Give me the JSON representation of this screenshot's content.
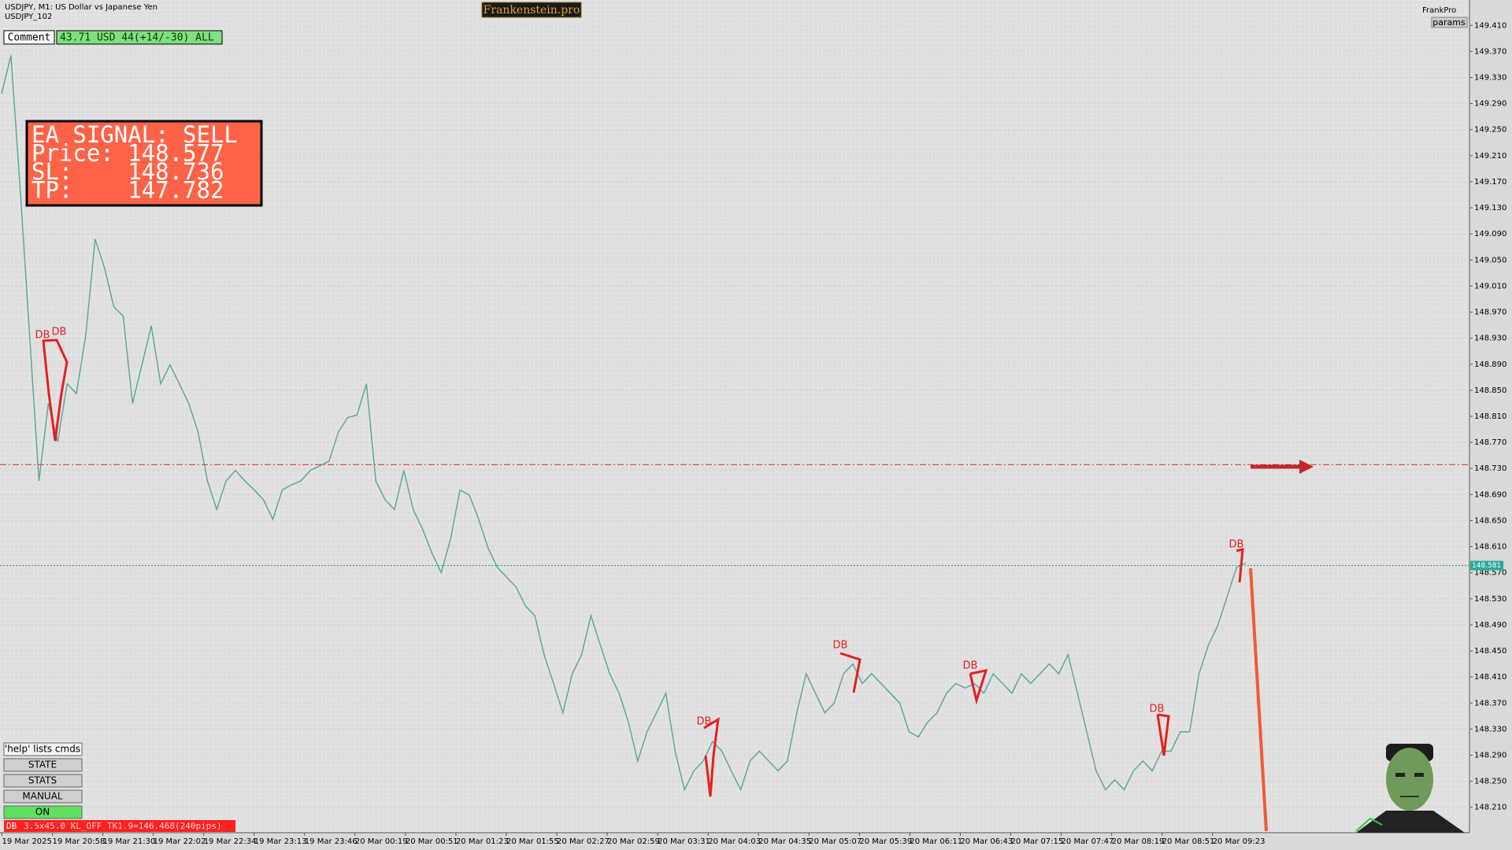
{
  "header": {
    "symbol": "USDJPY, M1:  US Dollar vs Japanese Yen",
    "account": "USDJPY_102",
    "brand": "Frankenstein.pro",
    "user": "FrankPro",
    "params": "params"
  },
  "comment": {
    "button": "Comment",
    "text": "43.71 USD 44(+14/-30) ALL"
  },
  "signal": {
    "lines": [
      "EA SIGNAL: SELL",
      "Price: 148.577",
      "SL:    148.736",
      "TP:    147.782"
    ]
  },
  "buttons": [
    "'help' lists cmds",
    "STATE",
    "STATS",
    "MANUAL",
    "ON"
  ],
  "status": {
    "tag": "DB",
    "text": "3.5x45.0 KL_OFF TK1.9=146.468(240pips)"
  },
  "chart_data": {
    "type": "line",
    "color": "#5fa89b",
    "grid": true,
    "ylim": [
      148.171,
      149.449
    ],
    "yticks": [
      {
        "value": 149.41,
        "label": "149.410"
      },
      {
        "value": 149.37,
        "label": "149.370"
      },
      {
        "value": 149.33,
        "label": "149.330"
      },
      {
        "value": 149.29,
        "label": "149.290"
      },
      {
        "value": 149.25,
        "label": "149.250"
      },
      {
        "value": 149.21,
        "label": "149.210"
      },
      {
        "value": 149.17,
        "label": "149.170"
      },
      {
        "value": 149.13,
        "label": "149.130"
      },
      {
        "value": 149.09,
        "label": "149.090"
      },
      {
        "value": 149.05,
        "label": "149.050"
      },
      {
        "value": 149.01,
        "label": "149.010"
      },
      {
        "value": 148.97,
        "label": "148.970"
      },
      {
        "value": 148.93,
        "label": "148.930"
      },
      {
        "value": 148.89,
        "label": "148.890"
      },
      {
        "value": 148.85,
        "label": "148.850"
      },
      {
        "value": 148.81,
        "label": "148.810"
      },
      {
        "value": 148.77,
        "label": "148.770"
      },
      {
        "value": 148.73,
        "label": "148.730"
      },
      {
        "value": 148.69,
        "label": "148.690"
      },
      {
        "value": 148.65,
        "label": "148.650"
      },
      {
        "value": 148.61,
        "label": "148.610"
      },
      {
        "value": 148.57,
        "label": "148.570"
      },
      {
        "value": 148.53,
        "label": "148.530"
      },
      {
        "value": 148.49,
        "label": "148.490"
      },
      {
        "value": 148.45,
        "label": "148.450"
      },
      {
        "value": 148.41,
        "label": "148.410"
      },
      {
        "value": 148.37,
        "label": "148.370"
      },
      {
        "value": 148.33,
        "label": "148.330"
      },
      {
        "value": 148.29,
        "label": "148.290"
      },
      {
        "value": 148.25,
        "label": "148.250"
      },
      {
        "value": 148.21,
        "label": "148.210"
      }
    ],
    "x_labels": [
      "19 Mar 2025",
      "19 Mar 20:58",
      "19 Mar 21:30",
      "19 Mar 22:02",
      "19 Mar 22:34",
      "19 Mar 23:13",
      "19 Mar 23:46",
      "20 Mar 00:19",
      "20 Mar 00:51",
      "20 Mar 01:23",
      "20 Mar 01:55",
      "20 Mar 02:27",
      "20 Mar 02:59",
      "20 Mar 03:31",
      "20 Mar 04:03",
      "20 Mar 04:35",
      "20 Mar 05:07",
      "20 Mar 05:39",
      "20 Mar 06:11",
      "20 Mar 06:43",
      "20 Mar 07:15",
      "20 Mar 07:47",
      "20 Mar 08:19",
      "20 Mar 08:51",
      "20 Mar 09:23"
    ],
    "values": [
      149.305,
      149.364,
      149.156,
      148.934,
      148.711,
      148.83,
      148.771,
      148.86,
      148.845,
      148.934,
      149.082,
      149.038,
      148.978,
      148.964,
      148.83,
      148.889,
      148.949,
      148.86,
      148.889,
      148.86,
      148.83,
      148.786,
      148.711,
      148.667,
      148.711,
      148.727,
      148.711,
      148.697,
      148.682,
      148.652,
      148.697,
      148.705,
      148.711,
      148.727,
      148.734,
      148.741,
      148.786,
      148.808,
      148.812,
      148.86,
      148.711,
      148.682,
      148.667,
      148.727,
      148.667,
      148.637,
      148.6,
      148.57,
      148.622,
      148.697,
      148.689,
      148.652,
      148.608,
      148.578,
      148.563,
      148.548,
      148.519,
      148.504,
      148.444,
      148.4,
      148.355,
      148.415,
      148.444,
      148.504,
      148.459,
      148.415,
      148.385,
      148.341,
      148.281,
      148.326,
      148.355,
      148.385,
      148.296,
      148.237,
      148.266,
      148.281,
      148.311,
      148.296,
      148.266,
      148.237,
      148.281,
      148.296,
      148.281,
      148.266,
      148.281,
      148.355,
      148.415,
      148.385,
      148.355,
      148.37,
      148.415,
      148.43,
      148.4,
      148.415,
      148.4,
      148.385,
      148.37,
      148.326,
      148.318,
      148.341,
      148.355,
      148.385,
      148.4,
      148.393,
      148.4,
      148.385,
      148.415,
      148.4,
      148.385,
      148.415,
      148.4,
      148.415,
      148.43,
      148.415,
      148.444,
      148.385,
      148.326,
      148.266,
      148.237,
      148.252,
      148.237,
      148.266,
      148.281,
      148.266,
      148.296,
      148.296,
      148.326,
      148.326,
      148.415,
      148.459,
      148.489,
      148.533,
      148.578,
      148.585
    ],
    "levels": {
      "stop_loss": 148.736,
      "bid": 148.581
    },
    "patterns": [
      "DB",
      "DB",
      "DB",
      "DB",
      "DB",
      "DB",
      "DB"
    ]
  }
}
